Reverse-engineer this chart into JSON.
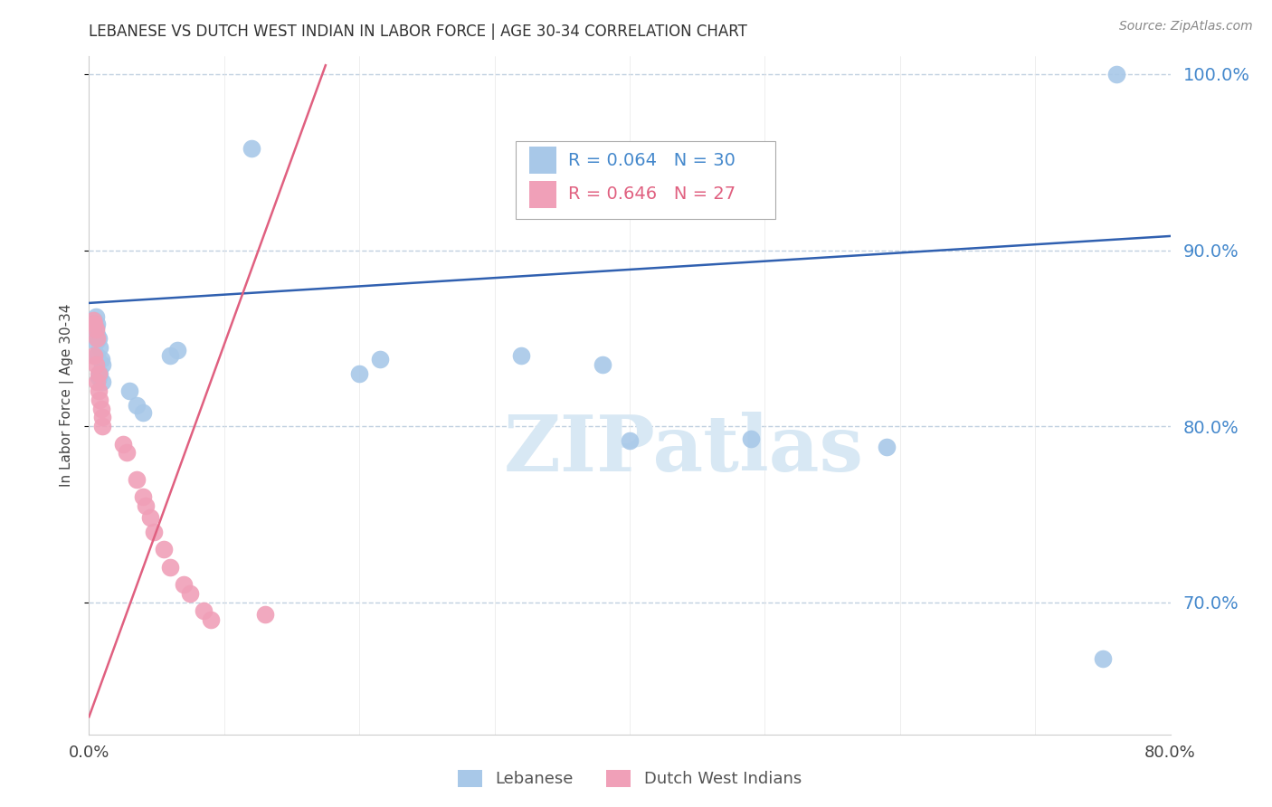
{
  "title": "LEBANESE VS DUTCH WEST INDIAN IN LABOR FORCE | AGE 30-34 CORRELATION CHART",
  "source": "Source: ZipAtlas.com",
  "ylabel": "In Labor Force | Age 30-34",
  "xlim": [
    0.0,
    0.8
  ],
  "ylim": [
    0.625,
    1.01
  ],
  "x_ticks": [
    0.0,
    0.1,
    0.2,
    0.3,
    0.4,
    0.5,
    0.6,
    0.7,
    0.8
  ],
  "x_tick_labels": [
    "0.0%",
    "",
    "",
    "",
    "",
    "",
    "",
    "",
    "80.0%"
  ],
  "y_ticks": [
    0.7,
    0.8,
    0.9,
    1.0
  ],
  "y_tick_labels": [
    "70.0%",
    "80.0%",
    "90.0%",
    "100.0%"
  ],
  "blue_color": "#a8c8e8",
  "pink_color": "#f0a0b8",
  "blue_line_color": "#3060b0",
  "pink_line_color": "#e06080",
  "blue_scatter_x": [
    0.004,
    0.005,
    0.006,
    0.005,
    0.004,
    0.006,
    0.007,
    0.005,
    0.008,
    0.006,
    0.009,
    0.01,
    0.008,
    0.007,
    0.01,
    0.03,
    0.035,
    0.04,
    0.06,
    0.065,
    0.12,
    0.2,
    0.215,
    0.32,
    0.38,
    0.4,
    0.49,
    0.59,
    0.75,
    0.76
  ],
  "blue_scatter_y": [
    0.86,
    0.862,
    0.858,
    0.856,
    0.854,
    0.852,
    0.85,
    0.848,
    0.845,
    0.84,
    0.838,
    0.835,
    0.83,
    0.828,
    0.825,
    0.82,
    0.812,
    0.808,
    0.84,
    0.843,
    0.958,
    0.83,
    0.838,
    0.84,
    0.835,
    0.792,
    0.793,
    0.788,
    0.668,
    1.0
  ],
  "pink_scatter_x": [
    0.003,
    0.004,
    0.005,
    0.006,
    0.004,
    0.005,
    0.007,
    0.006,
    0.007,
    0.008,
    0.009,
    0.01,
    0.01,
    0.025,
    0.028,
    0.035,
    0.04,
    0.042,
    0.045,
    0.048,
    0.055,
    0.06,
    0.07,
    0.075,
    0.085,
    0.09,
    0.13
  ],
  "pink_scatter_y": [
    0.86,
    0.858,
    0.855,
    0.85,
    0.84,
    0.835,
    0.83,
    0.825,
    0.82,
    0.815,
    0.81,
    0.805,
    0.8,
    0.79,
    0.785,
    0.77,
    0.76,
    0.755,
    0.748,
    0.74,
    0.73,
    0.72,
    0.71,
    0.705,
    0.695,
    0.69,
    0.693
  ],
  "blue_line_x": [
    0.0,
    0.8
  ],
  "blue_line_y": [
    0.87,
    0.908
  ],
  "pink_line_x": [
    0.0,
    0.175
  ],
  "pink_line_y": [
    0.635,
    1.005
  ],
  "watermark_text": "ZIPatlas",
  "watermark_color": "#d8e8f4",
  "background_color": "#ffffff",
  "grid_color": "#c0d0e0",
  "right_axis_color": "#4488cc",
  "pink_legend_color": "#e06080",
  "title_fontsize": 12,
  "legend_r_blue": "R = 0.064",
  "legend_n_blue": "N = 30",
  "legend_r_pink": "R = 0.646",
  "legend_n_pink": "N = 27",
  "legend_label_blue": "Lebanese",
  "legend_label_pink": "Dutch West Indians"
}
